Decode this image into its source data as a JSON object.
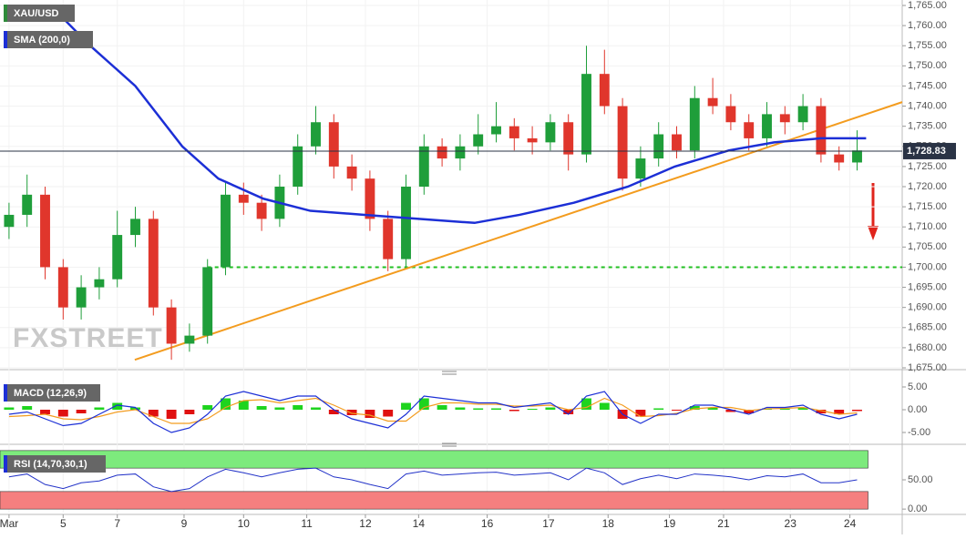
{
  "chart_data": [
    {
      "type": "candlestick",
      "legend": "XAU/USD",
      "watermark": "FXSTREET",
      "legend_color": "#2e8b3a",
      "x": [
        0,
        1,
        2,
        3,
        4,
        5,
        6,
        7,
        8,
        9,
        10,
        11,
        12,
        13,
        14,
        15,
        16,
        17,
        18,
        19,
        20,
        21,
        22,
        23,
        24,
        25,
        26,
        27,
        28,
        29,
        30,
        31,
        32,
        33,
        34,
        35,
        36,
        37,
        38,
        39,
        40,
        41,
        42,
        43,
        44,
        45,
        46,
        47
      ],
      "ohlc": [
        [
          1710,
          1716,
          1707,
          1713
        ],
        [
          1713,
          1723,
          1710,
          1718
        ],
        [
          1718,
          1720,
          1697,
          1700
        ],
        [
          1700,
          1702,
          1687,
          1690
        ],
        [
          1690,
          1698,
          1687,
          1695
        ],
        [
          1695,
          1700,
          1692,
          1697
        ],
        [
          1697,
          1714,
          1695,
          1708
        ],
        [
          1708,
          1715,
          1705,
          1712
        ],
        [
          1712,
          1714,
          1688,
          1690
        ],
        [
          1690,
          1692,
          1677,
          1681
        ],
        [
          1681,
          1686,
          1679,
          1683
        ],
        [
          1683,
          1702,
          1681,
          1700
        ],
        [
          1700,
          1721,
          1698,
          1718
        ],
        [
          1718,
          1721,
          1713,
          1716
        ],
        [
          1716,
          1718,
          1709,
          1712
        ],
        [
          1712,
          1723,
          1710,
          1720
        ],
        [
          1720,
          1733,
          1718,
          1730
        ],
        [
          1730,
          1740,
          1728,
          1736
        ],
        [
          1736,
          1738,
          1722,
          1725
        ],
        [
          1725,
          1728,
          1719,
          1722
        ],
        [
          1722,
          1724,
          1709,
          1712
        ],
        [
          1712,
          1714,
          1699,
          1702
        ],
        [
          1702,
          1723,
          1700,
          1720
        ],
        [
          1720,
          1733,
          1718,
          1730
        ],
        [
          1730,
          1732,
          1725,
          1727
        ],
        [
          1727,
          1733,
          1724,
          1730
        ],
        [
          1730,
          1738,
          1728,
          1733
        ],
        [
          1733,
          1741,
          1731,
          1735
        ],
        [
          1735,
          1737,
          1729,
          1732
        ],
        [
          1732,
          1735,
          1728,
          1731
        ],
        [
          1731,
          1738,
          1729,
          1736
        ],
        [
          1736,
          1738,
          1724,
          1728
        ],
        [
          1728,
          1755,
          1726,
          1748
        ],
        [
          1748,
          1754,
          1738,
          1740
        ],
        [
          1740,
          1742,
          1719,
          1722
        ],
        [
          1722,
          1730,
          1720,
          1727
        ],
        [
          1727,
          1736,
          1725,
          1733
        ],
        [
          1733,
          1735,
          1727,
          1729
        ],
        [
          1729,
          1745,
          1727,
          1742
        ],
        [
          1742,
          1747,
          1738,
          1740
        ],
        [
          1740,
          1743,
          1734,
          1736
        ],
        [
          1736,
          1738,
          1729,
          1732
        ],
        [
          1732,
          1741,
          1730,
          1738
        ],
        [
          1738,
          1740,
          1733,
          1736
        ],
        [
          1736,
          1743,
          1734,
          1740
        ],
        [
          1740,
          1742,
          1726,
          1728
        ],
        [
          1728,
          1730,
          1724,
          1726
        ],
        [
          1726,
          1734,
          1724,
          1729
        ]
      ],
      "up_color": "#1f9e3a",
      "down_color": "#e0362c",
      "sma": {
        "name": "SMA (200,0)",
        "color": "#1c2fd6",
        "x": [
          2.3,
          4.5,
          7,
          9.6,
          11.6,
          14.1,
          16.7,
          19.7,
          22.7,
          25.8,
          28.3,
          31.3,
          34.3,
          36.9,
          39.9,
          42.4,
          45,
          47.5
        ],
        "values": [
          1765,
          1755,
          1745,
          1730,
          1722,
          1717,
          1714,
          1713,
          1712,
          1711,
          1713,
          1716,
          1720,
          1725,
          1729,
          1731,
          1732,
          1732
        ]
      },
      "trendline": {
        "color": "#f39c1f",
        "x": [
          6.97,
          49.5
        ],
        "values": [
          1677,
          1741
        ]
      },
      "support": {
        "color": "#22c022",
        "x": [
          11.0,
          49.5
        ],
        "values": [
          1700,
          1700
        ]
      },
      "last_price": {
        "value": 1728.83,
        "label": "1,728.83"
      },
      "xlim": [
        -0.5,
        49.5
      ],
      "ylim": [
        1675,
        1765
      ],
      "grid": true,
      "xticks": [
        {
          "value": 0.0,
          "label": "Mar"
        },
        {
          "value": 3.0,
          "label": "5"
        },
        {
          "value": 6.0,
          "label": "7"
        },
        {
          "value": 9.7,
          "label": "9"
        },
        {
          "value": 13.0,
          "label": "10"
        },
        {
          "value": 16.5,
          "label": "11"
        },
        {
          "value": 19.75,
          "label": "12"
        },
        {
          "value": 22.7,
          "label": "14"
        },
        {
          "value": 26.5,
          "label": "16"
        },
        {
          "value": 29.9,
          "label": "17"
        },
        {
          "value": 33.2,
          "label": "18"
        },
        {
          "value": 36.6,
          "label": "19"
        },
        {
          "value": 39.6,
          "label": "21"
        },
        {
          "value": 43.3,
          "label": "23"
        },
        {
          "value": 46.6,
          "label": "24"
        }
      ],
      "yticks": [
        {
          "value": 1675,
          "label": "1,675.00"
        },
        {
          "value": 1680,
          "label": "1,680.00"
        },
        {
          "value": 1685,
          "label": "1,685.00"
        },
        {
          "value": 1690,
          "label": "1,690.00"
        },
        {
          "value": 1695,
          "label": "1,695.00"
        },
        {
          "value": 1700,
          "label": "1,700.00"
        },
        {
          "value": 1705,
          "label": "1,705.00"
        },
        {
          "value": 1710,
          "label": "1,710.00"
        },
        {
          "value": 1715,
          "label": "1,715.00"
        },
        {
          "value": 1720,
          "label": "1,720.00"
        },
        {
          "value": 1725,
          "label": "1,725.00"
        },
        {
          "value": 1730,
          "label": "1,730.00"
        },
        {
          "value": 1735,
          "label": "1,735.00"
        },
        {
          "value": 1740,
          "label": "1,740.00"
        },
        {
          "value": 1745,
          "label": "1,745.00"
        },
        {
          "value": 1750,
          "label": "1,750.00"
        },
        {
          "value": 1755,
          "label": "1,755.00"
        },
        {
          "value": 1760,
          "label": "1,760.00"
        },
        {
          "value": 1765,
          "label": "1,765.00"
        }
      ]
    },
    {
      "type": "macd",
      "legend": "MACD (12,26,9)",
      "legend_color": "#1c2fd6",
      "histogram": [
        0.5,
        0.8,
        -1.0,
        -1.5,
        -0.8,
        0.5,
        1.5,
        0.5,
        -1.5,
        -2.0,
        -1.0,
        1.0,
        2.5,
        2.0,
        0.8,
        0.5,
        1.0,
        0.5,
        -1.0,
        -1.2,
        -1.8,
        -1.5,
        1.5,
        2.5,
        1.0,
        0.5,
        0.3,
        0.3,
        -0.3,
        0.2,
        0.5,
        -1.0,
        2.5,
        1.5,
        -2.0,
        -1.5,
        0.3,
        -0.2,
        0.8,
        0.5,
        -0.5,
        -0.8,
        0.3,
        0.2,
        0.5,
        -0.8,
        -1.0,
        -0.3
      ],
      "macd": [
        -1,
        -0.5,
        -2,
        -3.5,
        -3,
        -1,
        1,
        0.5,
        -3,
        -5,
        -4,
        -1,
        3,
        4,
        3,
        2,
        3,
        3,
        0,
        -2,
        -3,
        -4,
        -1,
        3,
        2.5,
        2,
        1.5,
        1.5,
        0.5,
        1,
        1.5,
        -1,
        3,
        4,
        -1,
        -3,
        -1,
        -1,
        1,
        1,
        0,
        -1,
        0.5,
        0.5,
        1,
        -1,
        -2,
        -1
      ],
      "signal": [
        -1.5,
        -1.3,
        -1.0,
        -2.0,
        -2.2,
        -1.5,
        -0.5,
        0,
        -1.5,
        -3,
        -3,
        -2,
        0.5,
        2,
        2.2,
        1.5,
        2,
        2.5,
        1,
        -0.8,
        -1.2,
        -2.5,
        -2.5,
        0.5,
        1.5,
        1.5,
        1.2,
        1.2,
        0.8,
        0.8,
        1,
        0,
        0.5,
        2.5,
        1,
        -1.5,
        -1.3,
        -0.8,
        0.2,
        0.5,
        0.5,
        -0.2,
        0.2,
        0.3,
        0.5,
        -0.2,
        -1,
        -0.7
      ],
      "hist_up_color": "#1ed41e",
      "hist_down_color": "#e01010",
      "macd_color": "#1c2fd6",
      "signal_color": "#f39c1f",
      "ylim": [
        -7,
        8
      ],
      "yticks": [
        {
          "value": 5,
          "label": "5.00"
        },
        {
          "value": 0,
          "label": "0.00"
        },
        {
          "value": -5,
          "label": "-5.00"
        }
      ]
    },
    {
      "type": "rsi",
      "legend": "RSI (14,70,30,1)",
      "legend_color": "#1c2fd6",
      "color": "#2333c8",
      "values": [
        55,
        60,
        42,
        35,
        45,
        48,
        58,
        60,
        38,
        30,
        35,
        55,
        68,
        62,
        55,
        62,
        68,
        70,
        55,
        50,
        42,
        35,
        60,
        65,
        58,
        60,
        62,
        63,
        58,
        60,
        62,
        50,
        70,
        62,
        42,
        52,
        58,
        52,
        60,
        58,
        55,
        50,
        57,
        55,
        60,
        45,
        45,
        50
      ],
      "overbought": [
        70,
        100
      ],
      "oversold": [
        0,
        30
      ],
      "overbought_color": "#7dea7d",
      "oversold_color": "#f57f7f",
      "ylim": [
        -6,
        106
      ],
      "yticks": [
        {
          "value": 50,
          "label": "50.00"
        },
        {
          "value": 0,
          "label": "0.00"
        }
      ]
    }
  ]
}
